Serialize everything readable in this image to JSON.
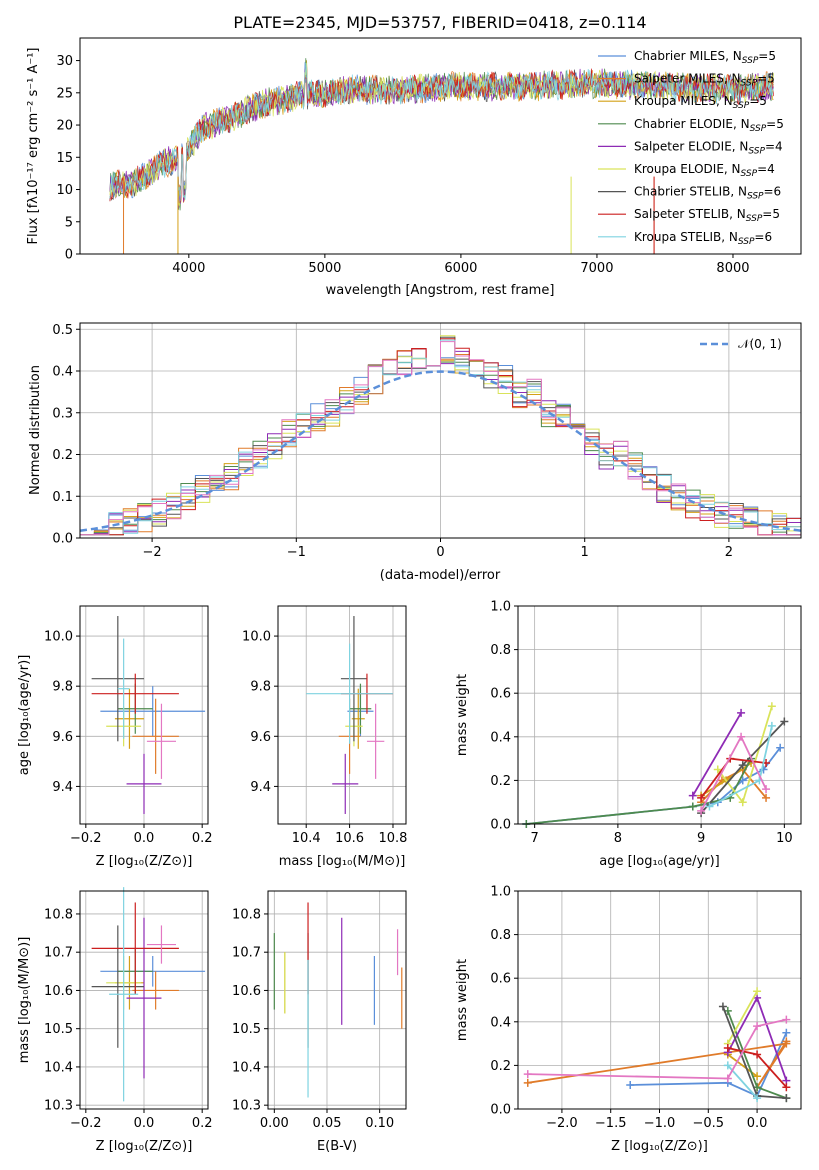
{
  "colors": [
    "#5b8fd9",
    "#e07b2a",
    "#d4a017",
    "#4e8a4e",
    "#8e2bb5",
    "#d9e35a",
    "#555555",
    "#cc1f1f",
    "#7fd3e0",
    "#e377c2"
  ],
  "spectrum": {
    "title": "PLATE=2345, MJD=53757, FIBERID=0418, z=0.114",
    "xlabel": "wavelength [Angstrom, rest frame]",
    "ylabel": "Flux [fλ10⁻¹⁷ erg cm⁻² s⁻¹ A⁻¹]",
    "xticks": [
      "4000",
      "5000",
      "6000",
      "7000",
      "8000"
    ],
    "yticks": [
      "0",
      "5",
      "10",
      "15",
      "20",
      "25",
      "30"
    ],
    "legend": [
      "Chabrier MILES, N_SSP=5",
      "Salpeter MILES, N_SSP=5",
      "Kroupa MILES, N_SSP=5",
      "Chabrier ELODIE, N_SSP=5",
      "Salpeter ELODIE, N_SSP=4",
      "Kroupa ELODIE, N_SSP=4",
      "Chabrier STELIB, N_SSP=6",
      "Salpeter STELIB, N_SSP=5",
      "Kroupa STELIB, N_SSP=6"
    ]
  },
  "residuals": {
    "xlabel": "(data-model)/error",
    "ylabel": "Normed distribution",
    "xticks": [
      "−2",
      "−1",
      "0",
      "1",
      "2"
    ],
    "yticks": [
      "0.0",
      "0.1",
      "0.2",
      "0.3",
      "0.4",
      "0.5"
    ],
    "legend": "𝒩(0, 1)"
  },
  "panel_age_z": {
    "xlabel": "Z [log₁₀(Z/Z⊙)]",
    "ylabel": "age  [log₁₀(age/yr)]",
    "xticks": [
      "−0.2",
      "0.0",
      "0.2"
    ],
    "yticks": [
      "9.4",
      "9.6",
      "9.8",
      "10.0"
    ]
  },
  "panel_age_mass": {
    "xlabel": "mass [log₁₀(M/M⊙)]",
    "xticks": [
      "10.4",
      "10.6",
      "10.8"
    ],
    "yticks": [
      "9.4",
      "9.6",
      "9.8",
      "10.0"
    ]
  },
  "panel_mw_age": {
    "xlabel": "age  [log₁₀(age/yr)]",
    "ylabel": "mass weight",
    "xticks": [
      "7",
      "8",
      "9",
      "10"
    ],
    "yticks": [
      "0.0",
      "0.2",
      "0.4",
      "0.6",
      "0.8",
      "1.0"
    ]
  },
  "panel_mass_z": {
    "xlabel": "Z [log₁₀(Z/Z⊙)]",
    "ylabel": "mass [log₁₀(M/M⊙)]",
    "xticks": [
      "−0.2",
      "0.0",
      "0.2"
    ],
    "yticks": [
      "10.3",
      "10.4",
      "10.5",
      "10.6",
      "10.7",
      "10.8"
    ]
  },
  "panel_mass_ebv": {
    "xlabel": "E(B-V)",
    "xticks": [
      "0.00",
      "0.05",
      "0.10"
    ],
    "yticks": [
      "10.3",
      "10.4",
      "10.5",
      "10.6",
      "10.7",
      "10.8"
    ]
  },
  "panel_mw_z": {
    "xlabel": "Z [log₁₀(Z/Z⊙)]",
    "ylabel": "mass weight",
    "xticks": [
      "−2.0",
      "−1.5",
      "−1.0",
      "−0.5",
      "0.0"
    ],
    "yticks": [
      "0.0",
      "0.2",
      "0.4",
      "0.6",
      "0.8",
      "1.0"
    ]
  },
  "chart_data": [
    {
      "type": "line",
      "title": "PLATE=2345, MJD=53757, FIBERID=0418, z=0.114",
      "xlabel": "wavelength [Angstrom, rest frame]",
      "ylabel": "Flux [fλ10⁻¹⁷ erg cm⁻² s⁻¹ A⁻¹]",
      "xlim": [
        3200,
        8500
      ],
      "ylim": [
        0,
        33.5
      ],
      "legend_position": "top-right",
      "series": [
        {
          "name": "Chabrier MILES, N_SSP=5"
        },
        {
          "name": "Salpeter MILES, N_SSP=5"
        },
        {
          "name": "Kroupa MILES, N_SSP=5"
        },
        {
          "name": "Chabrier ELODIE, N_SSP=5"
        },
        {
          "name": "Salpeter ELODIE, N_SSP=4"
        },
        {
          "name": "Kroupa ELODIE, N_SSP=4"
        },
        {
          "name": "Chabrier STELIB, N_SSP=6"
        },
        {
          "name": "Salpeter STELIB, N_SSP=5"
        },
        {
          "name": "Kroupa STELIB, N_SSP=6"
        }
      ],
      "continuum_x": [
        3400,
        3600,
        3800,
        3950,
        4100,
        4300,
        4500,
        4800,
        5200,
        5600,
        6000,
        6500,
        7000,
        7500,
        8000,
        8300
      ],
      "continuum_y": [
        10.5,
        11,
        14,
        15,
        19.5,
        21,
        23,
        24.5,
        25.5,
        25.5,
        26,
        26,
        26.5,
        26,
        25.5,
        26
      ]
    },
    {
      "type": "bar",
      "xlabel": "(data-model)/error",
      "ylabel": "Normed distribution",
      "xlim": [
        -2.5,
        2.5
      ],
      "ylim": [
        0,
        0.515
      ],
      "bin_width": 0.1,
      "reference_curve": "N(0,1)",
      "x": [
        -2.45,
        -2.35,
        -2.25,
        -2.15,
        -2.05,
        -1.95,
        -1.85,
        -1.75,
        -1.65,
        -1.55,
        -1.45,
        -1.35,
        -1.25,
        -1.15,
        -1.05,
        -0.95,
        -0.85,
        -0.75,
        -0.65,
        -0.55,
        -0.45,
        -0.35,
        -0.25,
        -0.15,
        -0.05,
        0.05,
        0.15,
        0.25,
        0.35,
        0.45,
        0.55,
        0.65,
        0.75,
        0.85,
        0.95,
        1.05,
        1.15,
        1.25,
        1.35,
        1.45,
        1.55,
        1.65,
        1.75,
        1.85,
        1.95,
        2.05,
        2.15,
        2.25,
        2.35,
        2.45
      ],
      "values": [
        0.02,
        0.025,
        0.03,
        0.04,
        0.05,
        0.06,
        0.08,
        0.1,
        0.12,
        0.14,
        0.15,
        0.18,
        0.2,
        0.22,
        0.25,
        0.27,
        0.29,
        0.3,
        0.33,
        0.35,
        0.38,
        0.4,
        0.42,
        0.44,
        0.43,
        0.45,
        0.42,
        0.4,
        0.39,
        0.38,
        0.34,
        0.35,
        0.3,
        0.3,
        0.27,
        0.23,
        0.2,
        0.2,
        0.17,
        0.15,
        0.12,
        0.1,
        0.08,
        0.07,
        0.06,
        0.05,
        0.04,
        0.03,
        0.025,
        0.02
      ]
    },
    {
      "type": "scatter",
      "xlabel": "Z [log₁₀(Z/Z⊙)]",
      "ylabel": "age  [log₁₀(age/yr)]",
      "xlim": [
        -0.22,
        0.22
      ],
      "ylim": [
        9.25,
        10.12
      ],
      "points": [
        {
          "x": 0.03,
          "y": 9.7,
          "xerr": 0.18,
          "yerr": 0.1
        },
        {
          "x": 0.04,
          "y": 9.6,
          "xerr": 0.08,
          "yerr": 0.15
        },
        {
          "x": -0.05,
          "y": 9.67,
          "xerr": 0.05,
          "yerr": 0.12
        },
        {
          "x": -0.03,
          "y": 9.71,
          "xerr": 0.06,
          "yerr": 0.1
        },
        {
          "x": 0.0,
          "y": 9.41,
          "xerr": 0.06,
          "yerr": 0.12
        },
        {
          "x": -0.07,
          "y": 9.64,
          "xerr": 0.06,
          "yerr": 0.08
        },
        {
          "x": -0.09,
          "y": 9.83,
          "xerr": 0.09,
          "yerr": 0.25
        },
        {
          "x": -0.03,
          "y": 9.77,
          "xerr": 0.15,
          "yerr": 0.08
        },
        {
          "x": -0.07,
          "y": 9.79,
          "xerr": 0.02,
          "yerr": 0.2
        },
        {
          "x": 0.06,
          "y": 9.58,
          "xerr": 0.05,
          "yerr": 0.15
        }
      ]
    },
    {
      "type": "scatter",
      "xlabel": "mass [log₁₀(M/M⊙)]",
      "ylabel": "age  [log₁₀(age/yr)]",
      "xlim": [
        10.27,
        10.86
      ],
      "ylim": [
        9.25,
        10.12
      ],
      "points": [
        {
          "x": 10.65,
          "y": 9.7,
          "xerr": 0.06,
          "yerr": 0.1
        },
        {
          "x": 10.6,
          "y": 9.6,
          "xerr": 0.05,
          "yerr": 0.15
        },
        {
          "x": 10.64,
          "y": 9.67,
          "xerr": 0.03,
          "yerr": 0.12
        },
        {
          "x": 10.65,
          "y": 9.71,
          "xerr": 0.05,
          "yerr": 0.1
        },
        {
          "x": 10.58,
          "y": 9.41,
          "xerr": 0.06,
          "yerr": 0.12
        },
        {
          "x": 10.62,
          "y": 9.64,
          "xerr": 0.04,
          "yerr": 0.08
        },
        {
          "x": 10.62,
          "y": 9.83,
          "xerr": 0.06,
          "yerr": 0.25
        },
        {
          "x": 10.68,
          "y": 9.77,
          "xerr": 0.12,
          "yerr": 0.08
        },
        {
          "x": 10.6,
          "y": 9.77,
          "xerr": 0.2,
          "yerr": 0.2
        },
        {
          "x": 10.72,
          "y": 9.58,
          "xerr": 0.04,
          "yerr": 0.15
        }
      ]
    },
    {
      "type": "line",
      "xlabel": "age  [log₁₀(age/yr)]",
      "ylabel": "mass weight",
      "xlim": [
        6.8,
        10.2
      ],
      "ylim": [
        0,
        1.0
      ],
      "series": [
        {
          "x": [
            6.9,
            8.9,
            9.2,
            9.5,
            9.75,
            9.95
          ],
          "y": [
            0.0,
            0.08,
            0.1,
            0.2,
            0.25,
            0.35
          ]
        },
        {
          "x": [
            9.0,
            9.25,
            9.5,
            9.78
          ],
          "y": [
            0.1,
            0.2,
            0.25,
            0.12
          ]
        },
        {
          "x": [
            9.0,
            9.3,
            9.6
          ],
          "y": [
            0.13,
            0.2,
            0.28
          ]
        },
        {
          "x": [
            6.9,
            8.9,
            9.35,
            9.6
          ],
          "y": [
            0.0,
            0.08,
            0.12,
            0.3
          ]
        },
        {
          "x": [
            8.9,
            9.48
          ],
          "y": [
            0.13,
            0.51
          ]
        },
        {
          "x": [
            9.2,
            9.5,
            9.85
          ],
          "y": [
            0.25,
            0.1,
            0.54
          ]
        },
        {
          "x": [
            9.0,
            9.5,
            10.0
          ],
          "y": [
            0.05,
            0.27,
            0.47
          ]
        },
        {
          "x": [
            9.0,
            9.35,
            9.78
          ],
          "y": [
            0.12,
            0.3,
            0.28
          ]
        },
        {
          "x": [
            9.1,
            9.7,
            9.85
          ],
          "y": [
            0.08,
            0.2,
            0.45
          ]
        },
        {
          "x": [
            9.0,
            9.48,
            9.78
          ],
          "y": [
            0.06,
            0.4,
            0.16
          ]
        }
      ]
    },
    {
      "type": "scatter",
      "xlabel": "Z [log₁₀(Z/Z⊙)]",
      "ylabel": "mass [log₁₀(M/M⊙)]",
      "xlim": [
        -0.22,
        0.22
      ],
      "ylim": [
        10.29,
        10.86
      ],
      "points": [
        {
          "x": 0.03,
          "y": 10.65,
          "xerr": 0.18,
          "yerr": 0.04
        },
        {
          "x": 0.04,
          "y": 10.6,
          "xerr": 0.08,
          "yerr": 0.05
        },
        {
          "x": -0.05,
          "y": 10.62,
          "xerr": 0.05,
          "yerr": 0.07
        },
        {
          "x": -0.03,
          "y": 10.65,
          "xerr": 0.06,
          "yerr": 0.06
        },
        {
          "x": 0.0,
          "y": 10.58,
          "xerr": 0.06,
          "yerr": 0.21
        },
        {
          "x": -0.07,
          "y": 10.62,
          "xerr": 0.06,
          "yerr": 0.07
        },
        {
          "x": -0.09,
          "y": 10.61,
          "xerr": 0.09,
          "yerr": 0.16
        },
        {
          "x": -0.03,
          "y": 10.71,
          "xerr": 0.15,
          "yerr": 0.12
        },
        {
          "x": -0.07,
          "y": 10.59,
          "xerr": 0.05,
          "yerr": 0.28
        },
        {
          "x": 0.06,
          "y": 10.72,
          "xerr": 0.05,
          "yerr": 0.05
        }
      ]
    },
    {
      "type": "scatter",
      "xlabel": "E(B-V)",
      "ylabel": "mass [log₁₀(M/M⊙)]",
      "xlim": [
        -0.006,
        0.125
      ],
      "ylim": [
        10.29,
        10.86
      ],
      "points": [
        {
          "x": 0.095,
          "y": 10.6,
          "yerr": 0.09
        },
        {
          "x": 0.121,
          "y": 10.58,
          "yerr": 0.08
        },
        {
          "x": 0.01,
          "y": 10.62,
          "yerr": 0.08
        },
        {
          "x": 0.0,
          "y": 10.65,
          "yerr": 0.1
        },
        {
          "x": 0.064,
          "y": 10.65,
          "yerr": 0.14
        },
        {
          "x": 0.01,
          "y": 10.62,
          "yerr": 0.08
        },
        {
          "x": 0.032,
          "y": 10.6,
          "yerr": 0.15
        },
        {
          "x": 0.032,
          "y": 10.71,
          "yerr": 0.12
        },
        {
          "x": 0.032,
          "y": 10.5,
          "yerr": 0.18
        },
        {
          "x": 0.117,
          "y": 10.7,
          "yerr": 0.06
        }
      ]
    },
    {
      "type": "line",
      "xlabel": "Z [log₁₀(Z/Z⊙)]",
      "ylabel": "mass weight",
      "xlim": [
        -2.45,
        0.45
      ],
      "ylim": [
        0,
        1.0
      ],
      "series": [
        {
          "x": [
            -1.3,
            -0.3,
            0.0,
            0.3
          ],
          "y": [
            0.11,
            0.12,
            0.06,
            0.35
          ]
        },
        {
          "x": [
            -2.35,
            0.3,
            0.0,
            0.3
          ],
          "y": [
            0.12,
            0.3,
            0.1,
            0.31
          ]
        },
        {
          "x": [
            -0.3,
            0.0
          ],
          "y": [
            0.25,
            0.15
          ]
        },
        {
          "x": [
            -0.3,
            0.0,
            0.3
          ],
          "y": [
            0.45,
            0.1,
            0.05
          ]
        },
        {
          "x": [
            -0.3,
            0.0,
            0.3
          ],
          "y": [
            0.26,
            0.51,
            0.13
          ]
        },
        {
          "x": [
            -0.3,
            0.0
          ],
          "y": [
            0.3,
            0.54
          ]
        },
        {
          "x": [
            -0.35,
            0.0,
            0.3
          ],
          "y": [
            0.47,
            0.06,
            0.05
          ]
        },
        {
          "x": [
            -0.3,
            0.0,
            0.3
          ],
          "y": [
            0.28,
            0.25,
            0.1
          ]
        },
        {
          "x": [
            -0.3,
            0.0
          ],
          "y": [
            0.2,
            0.05
          ]
        },
        {
          "x": [
            -2.35,
            -0.3,
            0.0,
            0.3
          ],
          "y": [
            0.16,
            0.14,
            0.38,
            0.41
          ]
        }
      ]
    }
  ]
}
